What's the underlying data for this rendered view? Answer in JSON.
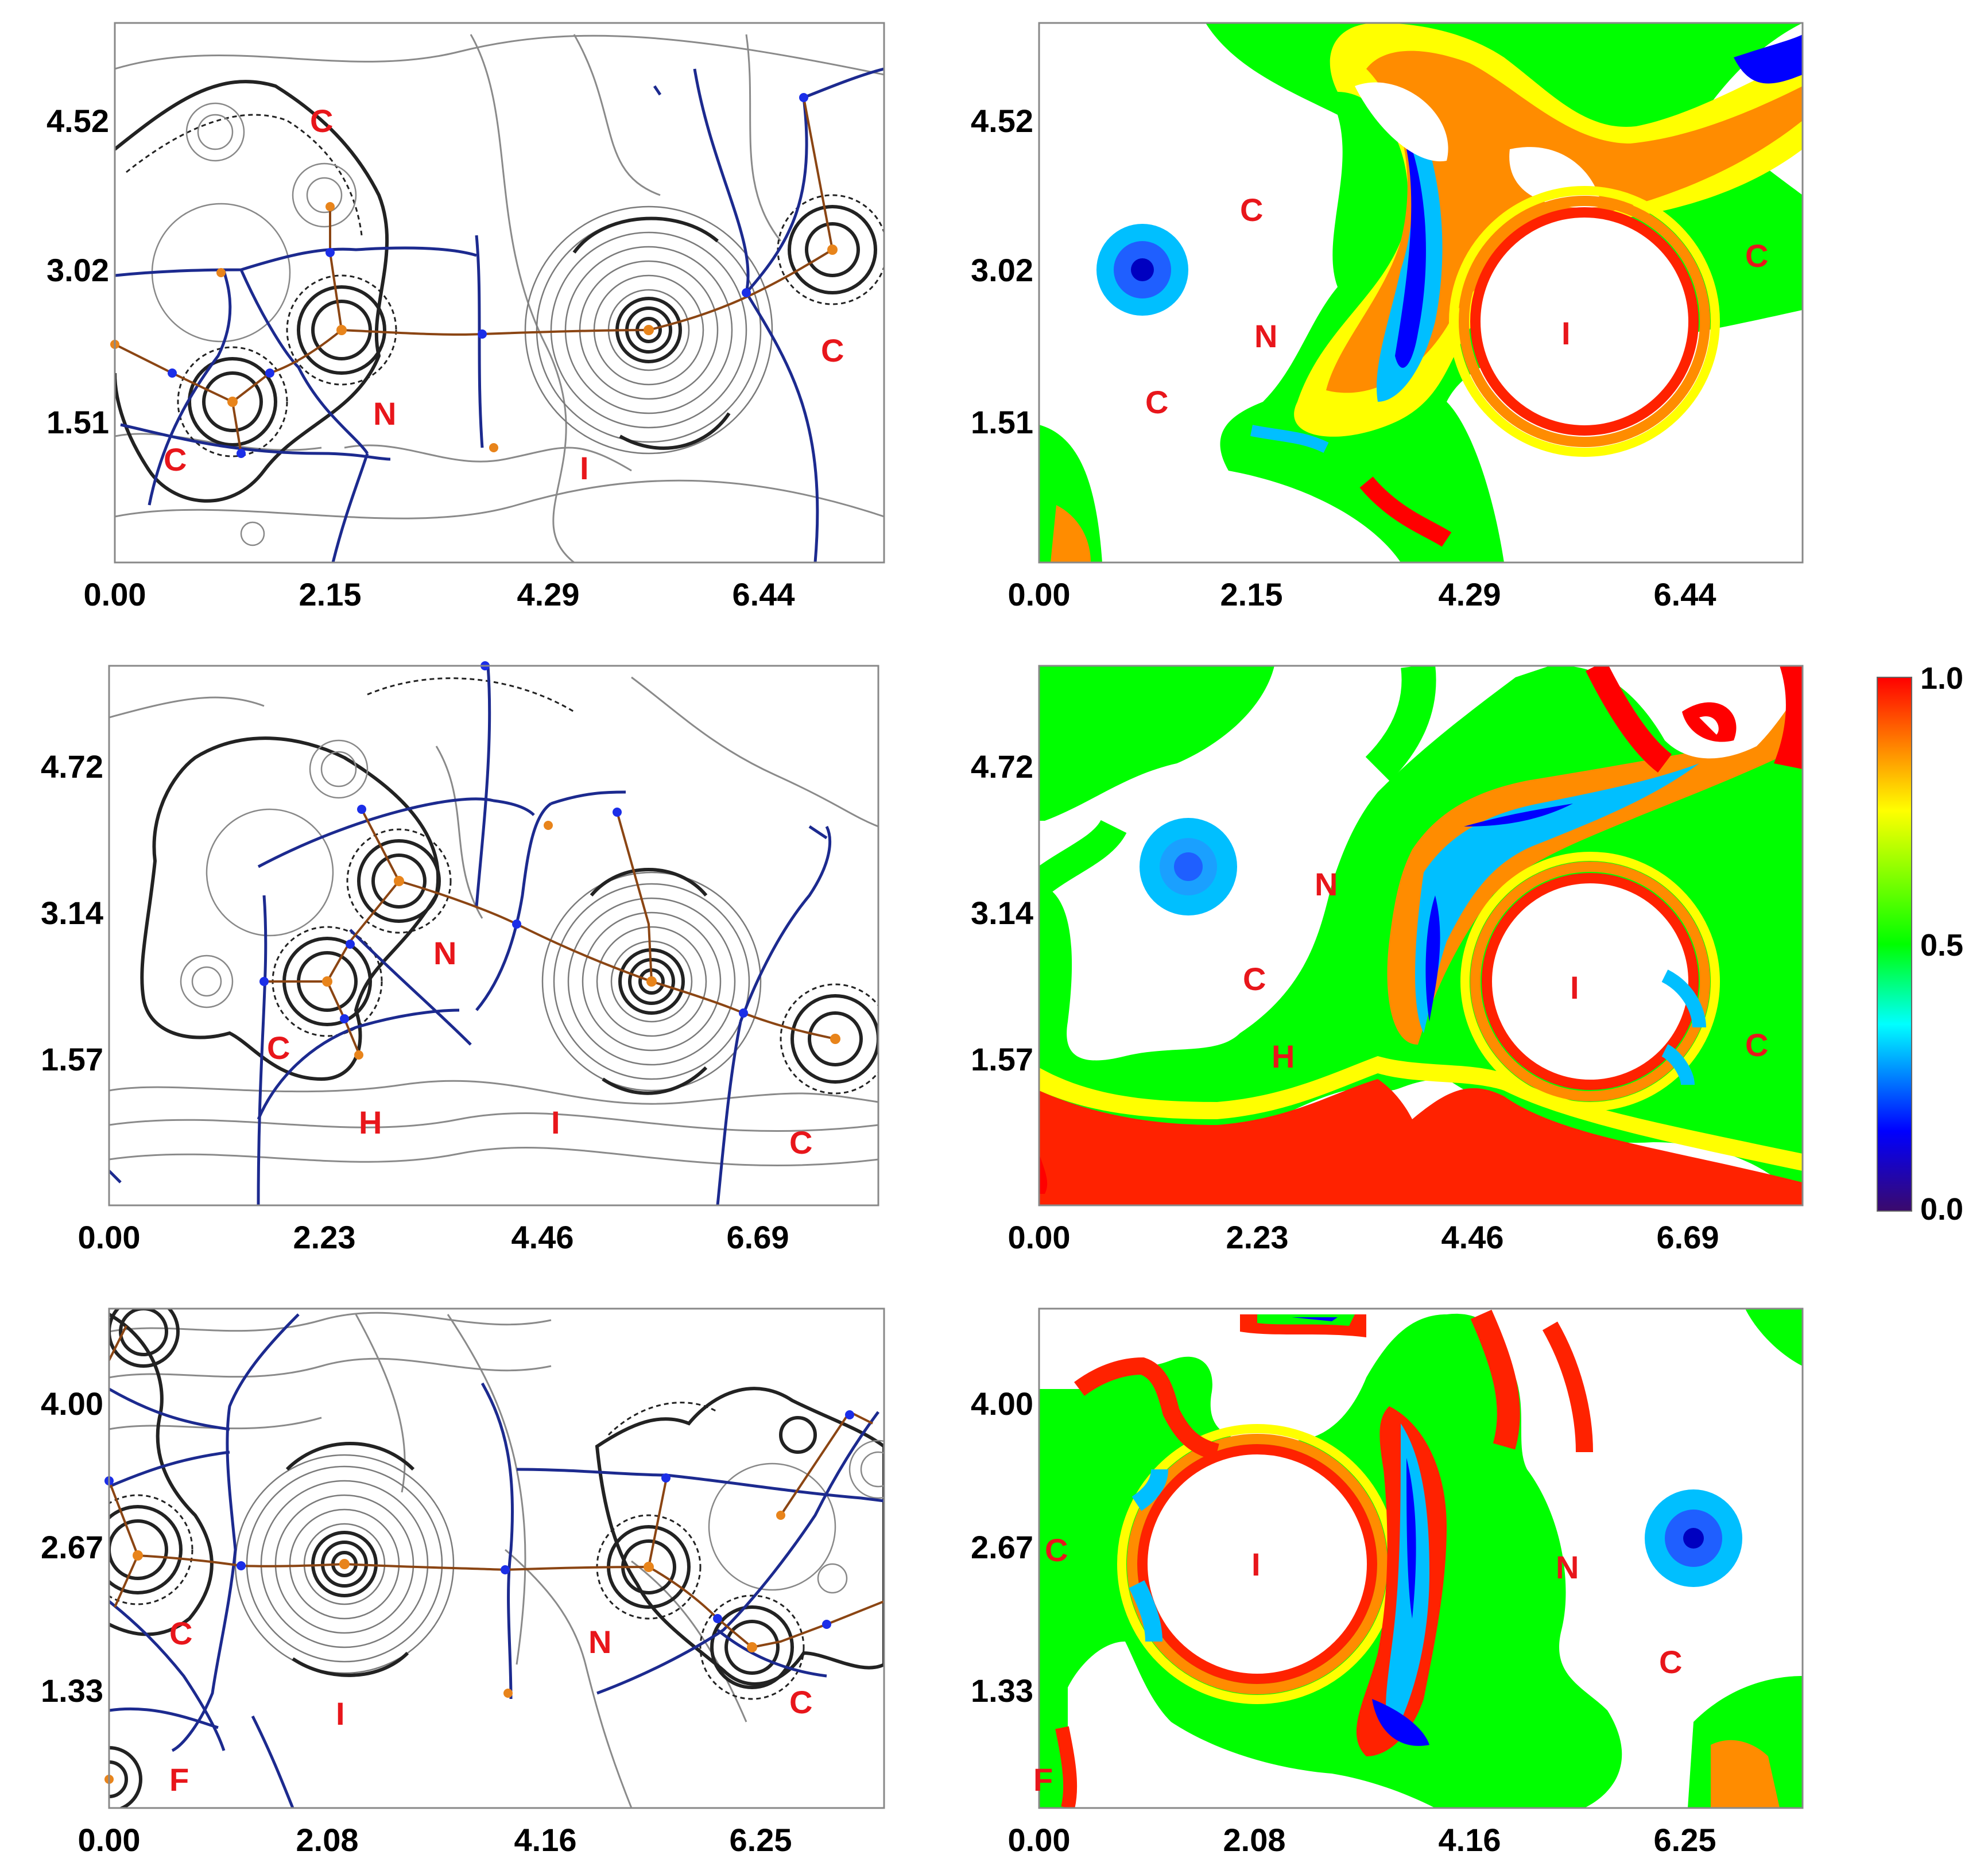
{
  "panels": [
    {
      "id": "row1-left",
      "kind": "contour",
      "x_ticks": [
        "0.00",
        "2.15",
        "4.29",
        "6.44"
      ],
      "y_ticks": [
        "4.52",
        "3.02",
        "1.51"
      ],
      "atoms": [
        "C",
        "N",
        "C",
        "I",
        "C"
      ]
    },
    {
      "id": "row1-right",
      "kind": "map",
      "x_ticks": [
        "0.00",
        "2.15",
        "4.29",
        "6.44"
      ],
      "y_ticks": [
        "4.52",
        "3.02",
        "1.51"
      ],
      "atoms": [
        "C",
        "N",
        "C",
        "I",
        "C"
      ]
    },
    {
      "id": "row2-left",
      "kind": "contour",
      "x_ticks": [
        "0.00",
        "2.23",
        "4.46",
        "6.69"
      ],
      "y_ticks": [
        "4.72",
        "3.14",
        "1.57"
      ],
      "atoms": [
        "N",
        "C",
        "H",
        "I",
        "C"
      ]
    },
    {
      "id": "row2-right",
      "kind": "map",
      "x_ticks": [
        "0.00",
        "2.23",
        "4.46",
        "6.69"
      ],
      "y_ticks": [
        "4.72",
        "3.14",
        "1.57"
      ],
      "atoms": [
        "N",
        "C",
        "H",
        "I",
        "C"
      ]
    },
    {
      "id": "row3-left",
      "kind": "contour",
      "x_ticks": [
        "0.00",
        "2.08",
        "4.16",
        "6.25"
      ],
      "y_ticks": [
        "4.00",
        "2.67",
        "1.33"
      ],
      "atoms": [
        "C",
        "N",
        "I",
        "C",
        "F"
      ]
    },
    {
      "id": "row3-right",
      "kind": "map",
      "x_ticks": [
        "0.00",
        "2.08",
        "4.16",
        "6.25"
      ],
      "y_ticks": [
        "4.00",
        "2.67",
        "1.33"
      ],
      "atoms": [
        "C",
        "I",
        "N",
        "C",
        "F"
      ]
    }
  ],
  "colorbar": {
    "max_label": "1.0",
    "mid_label": "0.5",
    "min_label": "0.0",
    "stops": [
      "#3b0a6b",
      "#0000ff",
      "#00ffff",
      "#00ff00",
      "#ffff00",
      "#ff0000"
    ]
  },
  "colors": {
    "atom_label": "#e8161b",
    "bond_path": "#8b4513",
    "zero_flux": "#1c2a8f",
    "critical_point_bond": "#1b2ee8",
    "critical_point_ring": "#e8841b"
  }
}
